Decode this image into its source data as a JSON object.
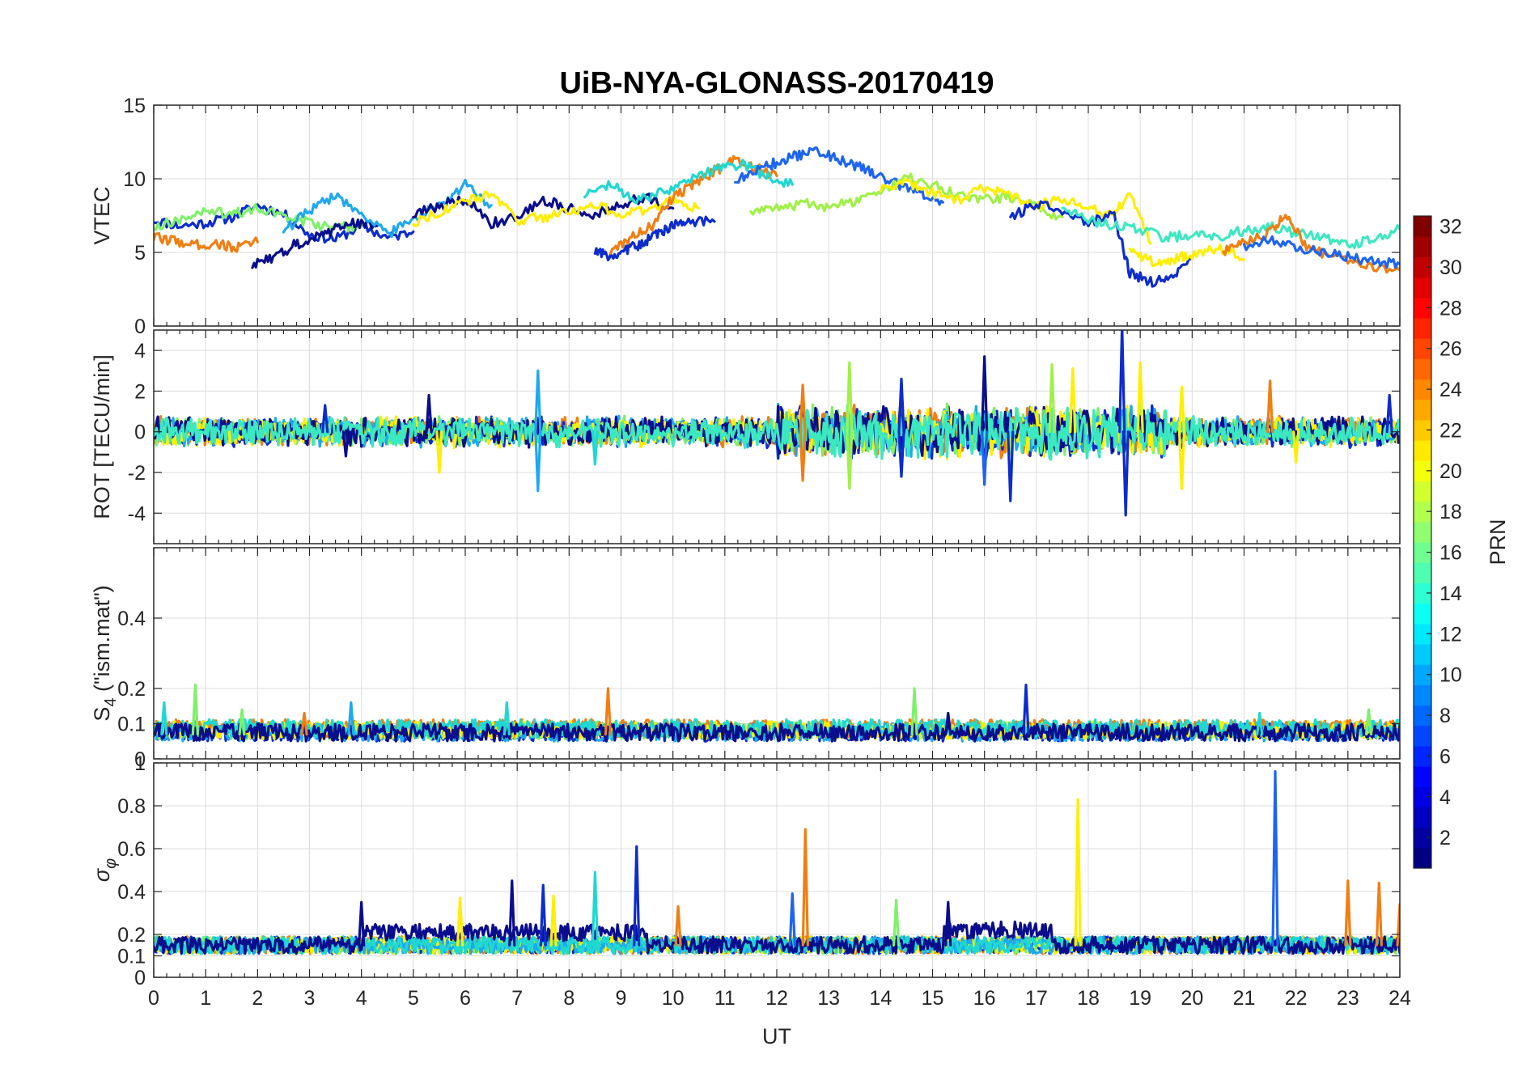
{
  "chart_data": {
    "title": "UiB-NYA-GLONASS-20170419",
    "xlabel": "UT",
    "xlim": [
      0,
      24
    ],
    "xticks": [
      "0",
      "1",
      "2",
      "3",
      "4",
      "5",
      "6",
      "7",
      "8",
      "9",
      "10",
      "11",
      "12",
      "13",
      "14",
      "15",
      "16",
      "17",
      "18",
      "19",
      "20",
      "21",
      "22",
      "23",
      "24"
    ],
    "grid": true,
    "panels": [
      {
        "type": "line",
        "ylabel": "VTEC",
        "ylim": [
          0,
          15
        ],
        "yticks": [
          "0",
          "5",
          "10",
          "15"
        ],
        "yticks_values": [
          0,
          5,
          10,
          15
        ],
        "series": [
          {
            "color": "#0c2ccc",
            "x": [
              0,
              0.5,
              1,
              1.5,
              2,
              2.5,
              3,
              3.5,
              4,
              4.5,
              5
            ],
            "y": [
              7.2,
              6.8,
              7.0,
              7.4,
              8.2,
              7.6,
              6.2,
              5.9,
              6.8,
              6.0,
              6.4
            ]
          },
          {
            "color": "#7ff06a",
            "x": [
              0,
              0.5,
              1,
              1.5,
              2,
              2.5,
              3,
              3.5,
              4
            ],
            "y": [
              6.8,
              7.2,
              7.8,
              7.6,
              8.0,
              7.5,
              7.0,
              6.6,
              6.9
            ]
          },
          {
            "color": "#f07e12",
            "x": [
              0,
              0.4,
              0.8,
              1.2,
              1.6,
              2.0
            ],
            "y": [
              6.0,
              5.8,
              5.5,
              5.6,
              5.3,
              5.7
            ]
          },
          {
            "color": "#0a0e8c",
            "x": [
              1.9,
              2.3,
              2.7,
              3.1,
              3.5,
              3.9,
              4.3
            ],
            "y": [
              4.1,
              4.6,
              5.5,
              6.0,
              6.6,
              7.0,
              6.8
            ]
          },
          {
            "color": "#1ea8f0",
            "x": [
              2.5,
              3,
              3.5,
              4,
              4.5,
              5,
              5.5,
              6,
              6.5
            ],
            "y": [
              6.5,
              7.8,
              8.9,
              7.6,
              6.2,
              7.4,
              8.1,
              9.6,
              8.2
            ]
          },
          {
            "color": "#0a0e8c",
            "x": [
              5.0,
              5.5,
              6.0,
              6.5,
              7.0,
              7.5,
              8.0,
              8.5,
              9.0,
              9.5,
              10.0
            ],
            "y": [
              7.5,
              8.2,
              8.6,
              7.0,
              7.4,
              8.6,
              8.0,
              7.6,
              8.3,
              8.8,
              8.0
            ]
          },
          {
            "color": "#ffee00",
            "x": [
              5,
              5.5,
              6,
              6.5,
              7,
              7.5,
              8,
              8.5,
              9,
              9.5,
              10,
              10.5
            ],
            "y": [
              7.0,
              7.8,
              8.4,
              9.0,
              7.2,
              7.4,
              7.8,
              8.2,
              7.6,
              7.8,
              8.6,
              8.0
            ]
          },
          {
            "color": "#0c2ccc",
            "x": [
              8.5,
              8.8,
              9.1,
              9.4,
              9.7,
              10.0,
              10.3,
              10.8
            ],
            "y": [
              5.0,
              4.7,
              5.2,
              5.6,
              6.3,
              6.8,
              7.0,
              7.1
            ]
          },
          {
            "color": "#f07e12",
            "x": [
              8.8,
              9.2,
              9.6,
              10,
              10.4,
              10.8,
              11.2,
              11.6,
              12.0
            ],
            "y": [
              5.0,
              6.0,
              6.8,
              8.8,
              9.6,
              10.5,
              11.3,
              10.7,
              10.2
            ]
          },
          {
            "color": "#20d8d0",
            "x": [
              8.3,
              8.8,
              9.3,
              9.8,
              10.3,
              10.8,
              11.3,
              11.8,
              12.3
            ],
            "y": [
              8.8,
              9.6,
              8.5,
              9.1,
              9.8,
              10.6,
              11.0,
              10.2,
              9.6
            ]
          },
          {
            "color": "#1e64f0",
            "x": [
              11.2,
              11.6,
              12.0,
              12.4,
              12.8,
              13.2,
              13.6,
              14.0,
              14.4,
              14.8,
              15.2
            ],
            "y": [
              9.8,
              10.6,
              11.1,
              11.6,
              11.9,
              11.3,
              10.8,
              10.1,
              9.5,
              9.0,
              8.4
            ]
          },
          {
            "color": "#a0f048",
            "x": [
              11.5,
              12,
              12.5,
              13,
              13.5,
              14,
              14.5,
              15,
              15.5,
              16,
              16.5,
              17,
              17.5
            ],
            "y": [
              7.8,
              8.0,
              8.3,
              8.1,
              8.4,
              9.0,
              10.1,
              9.6,
              9.0,
              8.6,
              8.8,
              8.0,
              7.4
            ]
          },
          {
            "color": "#ffee00",
            "x": [
              14,
              14.5,
              15,
              15.5,
              16,
              16.5,
              17,
              17.5,
              18,
              18.5,
              18.8,
              19.2
            ],
            "y": [
              9.2,
              9.8,
              9.0,
              8.6,
              9.4,
              8.8,
              8.2,
              8.6,
              8.0,
              7.5,
              9.2,
              5.6
            ]
          },
          {
            "color": "#0c2ccc",
            "x": [
              16.5,
              17,
              17.5,
              18,
              18.5,
              18.8,
              19.2,
              19.6,
              20.0
            ],
            "y": [
              7.4,
              8.3,
              7.8,
              7.0,
              7.5,
              3.6,
              3.0,
              3.2,
              4.6
            ]
          },
          {
            "color": "#3ce8c0",
            "x": [
              17.5,
              18,
              18.5,
              19,
              19.5,
              20,
              20.5,
              21,
              21.5,
              22,
              22.5,
              23,
              23.5,
              24
            ],
            "y": [
              8.0,
              7.2,
              6.8,
              6.5,
              6.0,
              6.2,
              6.0,
              6.5,
              6.8,
              6.3,
              6.0,
              5.5,
              5.9,
              6.6
            ]
          },
          {
            "color": "#ffee00",
            "x": [
              18.8,
              19.2,
              19.6,
              20.0,
              20.5,
              21.0
            ],
            "y": [
              5.2,
              4.4,
              4.5,
              4.9,
              5.3,
              4.5
            ]
          },
          {
            "color": "#f07e12",
            "x": [
              20.6,
              21.0,
              21.5,
              21.8,
              22.2,
              22.8,
              23.4,
              24.0
            ],
            "y": [
              5.0,
              5.6,
              6.4,
              7.6,
              5.4,
              4.6,
              4.0,
              3.8
            ]
          },
          {
            "color": "#1e64f0",
            "x": [
              21.0,
              21.5,
              22.0,
              22.5,
              23.0,
              23.5,
              24.0
            ],
            "y": [
              5.5,
              5.8,
              5.4,
              5.0,
              4.7,
              4.4,
              4.2
            ]
          }
        ]
      },
      {
        "type": "line",
        "ylabel": "ROT [TECU/min]",
        "ylim": [
          -5.5,
          5
        ],
        "yticks": [
          "-4",
          "-2",
          "0",
          "2",
          "4"
        ],
        "yticks_values": [
          -4,
          -2,
          0,
          2,
          4
        ],
        "noise_band": {
          "base": 0.3,
          "colors": [
            "#f07e12",
            "#0c2ccc",
            "#7ff06a",
            "#1ea8f0",
            "#ffee00",
            "#0a0e8c",
            "#3ce8c0"
          ]
        },
        "spikes": [
          {
            "x": 3.3,
            "y": 1.3,
            "color": "#0c2ccc"
          },
          {
            "x": 3.7,
            "y": -1.2,
            "color": "#0a0e8c"
          },
          {
            "x": 5.3,
            "y": 1.8,
            "color": "#0a0e8c"
          },
          {
            "x": 5.5,
            "y": -2.0,
            "color": "#ffee00"
          },
          {
            "x": 7.4,
            "y": 3.0,
            "color": "#1ea8f0"
          },
          {
            "x": 7.4,
            "y": -2.9,
            "color": "#1ea8f0"
          },
          {
            "x": 8.5,
            "y": -1.6,
            "color": "#20d8d0"
          },
          {
            "x": 12.5,
            "y": 2.3,
            "color": "#f07e12"
          },
          {
            "x": 12.5,
            "y": -2.4,
            "color": "#f07e12"
          },
          {
            "x": 13.4,
            "y": 3.4,
            "color": "#a0f048"
          },
          {
            "x": 13.4,
            "y": -2.8,
            "color": "#a0f048"
          },
          {
            "x": 14.4,
            "y": 2.6,
            "color": "#0c2ccc"
          },
          {
            "x": 14.4,
            "y": -2.2,
            "color": "#0c2ccc"
          },
          {
            "x": 16.0,
            "y": 3.7,
            "color": "#0a0e8c"
          },
          {
            "x": 16.0,
            "y": -2.6,
            "color": "#1e64f0"
          },
          {
            "x": 16.5,
            "y": -3.4,
            "color": "#0c2ccc"
          },
          {
            "x": 17.3,
            "y": 3.3,
            "color": "#a0f048"
          },
          {
            "x": 17.7,
            "y": 3.1,
            "color": "#ffee00"
          },
          {
            "x": 18.65,
            "y": 5.2,
            "color": "#0c2ccc"
          },
          {
            "x": 18.72,
            "y": -4.1,
            "color": "#0c2ccc"
          },
          {
            "x": 19.0,
            "y": 3.4,
            "color": "#ffee00"
          },
          {
            "x": 19.8,
            "y": 2.2,
            "color": "#ffee00"
          },
          {
            "x": 19.8,
            "y": -2.8,
            "color": "#ffee00"
          },
          {
            "x": 21.5,
            "y": 2.5,
            "color": "#f07e12"
          },
          {
            "x": 22.0,
            "y": -1.5,
            "color": "#ffee00"
          },
          {
            "x": 23.8,
            "y": 1.8,
            "color": "#0c2ccc"
          }
        ]
      },
      {
        "type": "line",
        "ylabel_main": "S",
        "ylabel_sub": "4",
        "ylabel_rest": " (\"ism.mat\")",
        "ylim": [
          0,
          0.6
        ],
        "yticks": [
          "0",
          "0.1",
          "0.2",
          "0.4"
        ],
        "yticks_values": [
          0,
          0.1,
          0.2,
          0.4
        ],
        "noise_band": {
          "base": 0.07,
          "colors": [
            "#0c2ccc",
            "#7ff06a",
            "#f07e12",
            "#1ea8f0",
            "#ffee00",
            "#20d8d0",
            "#0a0e8c"
          ]
        },
        "spikes": [
          {
            "x": 0.8,
            "y": 0.21,
            "color": "#7ff06a"
          },
          {
            "x": 0.2,
            "y": 0.16,
            "color": "#20d8d0"
          },
          {
            "x": 1.7,
            "y": 0.14,
            "color": "#7ff06a"
          },
          {
            "x": 2.9,
            "y": 0.13,
            "color": "#f07e12"
          },
          {
            "x": 3.8,
            "y": 0.16,
            "color": "#1ea8f0"
          },
          {
            "x": 6.8,
            "y": 0.16,
            "color": "#20d8d0"
          },
          {
            "x": 8.75,
            "y": 0.2,
            "color": "#f07e12"
          },
          {
            "x": 14.65,
            "y": 0.2,
            "color": "#7ff06a"
          },
          {
            "x": 15.3,
            "y": 0.13,
            "color": "#0a0e8c"
          },
          {
            "x": 16.8,
            "y": 0.21,
            "color": "#0c2ccc"
          },
          {
            "x": 21.3,
            "y": 0.13,
            "color": "#20d8d0"
          },
          {
            "x": 23.4,
            "y": 0.14,
            "color": "#7ff06a"
          }
        ]
      },
      {
        "type": "line",
        "ylabel": "σφ",
        "ylim": [
          0,
          1
        ],
        "yticks": [
          "0",
          "0.1",
          "0.2",
          "0.4",
          "0.6",
          "0.8",
          "1"
        ],
        "yticks_values": [
          0,
          0.1,
          0.2,
          0.4,
          0.6,
          0.8,
          1
        ],
        "noise_band": {
          "base": 0.15,
          "colors": [
            "#f07e12",
            "#0c2ccc",
            "#7ff06a",
            "#ffee00",
            "#1ea8f0",
            "#20d8d0",
            "#0a0e8c"
          ]
        },
        "spikes": [
          {
            "x": 4.0,
            "y": 0.35,
            "color": "#0a0e8c"
          },
          {
            "x": 5.9,
            "y": 0.37,
            "color": "#ffee00"
          },
          {
            "x": 6.9,
            "y": 0.45,
            "color": "#0a0e8c"
          },
          {
            "x": 7.5,
            "y": 0.43,
            "color": "#0c2ccc"
          },
          {
            "x": 7.7,
            "y": 0.38,
            "color": "#ffee00"
          },
          {
            "x": 8.5,
            "y": 0.49,
            "color": "#20d8d0"
          },
          {
            "x": 9.3,
            "y": 0.61,
            "color": "#0c2ccc"
          },
          {
            "x": 10.1,
            "y": 0.33,
            "color": "#f07e12"
          },
          {
            "x": 12.3,
            "y": 0.39,
            "color": "#1e64f0"
          },
          {
            "x": 12.55,
            "y": 0.69,
            "color": "#f07e12"
          },
          {
            "x": 14.3,
            "y": 0.36,
            "color": "#7ff06a"
          },
          {
            "x": 15.3,
            "y": 0.35,
            "color": "#0a0e8c"
          },
          {
            "x": 17.8,
            "y": 0.83,
            "color": "#ffee00"
          },
          {
            "x": 21.6,
            "y": 0.96,
            "color": "#1e64f0"
          },
          {
            "x": 23.0,
            "y": 0.45,
            "color": "#f07e12"
          },
          {
            "x": 23.6,
            "y": 0.44,
            "color": "#f07e12"
          },
          {
            "x": 24.0,
            "y": 0.34,
            "color": "#f07e12"
          }
        ]
      }
    ],
    "colorbar": {
      "label": "PRN",
      "range": [
        1,
        32
      ],
      "ticks": [
        "2",
        "4",
        "6",
        "8",
        "10",
        "12",
        "14",
        "16",
        "18",
        "20",
        "22",
        "24",
        "26",
        "28",
        "30",
        "32"
      ],
      "ticks_values": [
        2,
        4,
        6,
        8,
        10,
        12,
        14,
        16,
        18,
        20,
        22,
        24,
        26,
        28,
        30,
        32
      ]
    }
  }
}
